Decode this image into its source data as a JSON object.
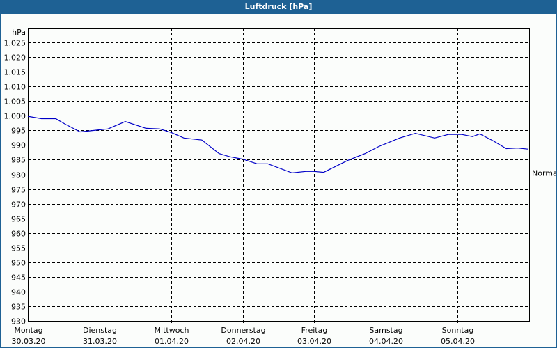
{
  "window": {
    "title": "Luftdruck [hPa]"
  },
  "chart_data": {
    "type": "line",
    "title": "Luftdruck [hPa]",
    "ylabel": "hPa",
    "xlabel": "",
    "ylim": [
      930,
      1030
    ],
    "y_ticks": [
      "1.025",
      "1.020",
      "1.015",
      "1.010",
      "1.005",
      "1.000",
      "995",
      "990",
      "985",
      "980",
      "975",
      "970",
      "965",
      "960",
      "955",
      "950",
      "945",
      "940",
      "935",
      "930"
    ],
    "y_tick_values": [
      1025,
      1020,
      1015,
      1010,
      1005,
      1000,
      995,
      990,
      985,
      980,
      975,
      970,
      965,
      960,
      955,
      950,
      945,
      940,
      935,
      930
    ],
    "x_ticks": [
      {
        "day": "Montag",
        "date": "30.03.20"
      },
      {
        "day": "Dienstag",
        "date": "31.03.20"
      },
      {
        "day": "Mittwoch",
        "date": "01.04.20"
      },
      {
        "day": "Donnerstag",
        "date": "02.04.20"
      },
      {
        "day": "Freitag",
        "date": "03.04.20"
      },
      {
        "day": "Samstag",
        "date": "04.04.20"
      },
      {
        "day": "Sonntag",
        "date": "05.04.20"
      }
    ],
    "reference_line": {
      "label": "Normal",
      "value": 980.5
    },
    "grid": true,
    "series": [
      {
        "name": "Luftdruck",
        "color": "#0000c8",
        "x_days": [
          0,
          0.19,
          0.39,
          0.53,
          0.73,
          1.0,
          1.12,
          1.36,
          1.65,
          1.84,
          2.0,
          2.18,
          2.43,
          2.67,
          2.82,
          3.0,
          3.2,
          3.35,
          3.69,
          3.88,
          4.0,
          4.13,
          4.47,
          4.71,
          4.9,
          5.0,
          5.19,
          5.41,
          5.68,
          5.87,
          6.06,
          6.21,
          6.31,
          6.5,
          6.68,
          6.84,
          6.99
        ],
        "values": [
          999.8,
          999,
          999,
          997,
          994.5,
          995.2,
          995.5,
          998,
          995.7,
          995.5,
          994.3,
          992.4,
          991.7,
          987.1,
          986,
          985.2,
          983.6,
          983.6,
          980.5,
          981,
          981,
          980.7,
          984.8,
          987.1,
          989.5,
          990.5,
          992.4,
          994,
          992.4,
          993.6,
          993.6,
          992.9,
          993.8,
          991.4,
          988.8,
          989,
          988.6
        ]
      }
    ]
  }
}
